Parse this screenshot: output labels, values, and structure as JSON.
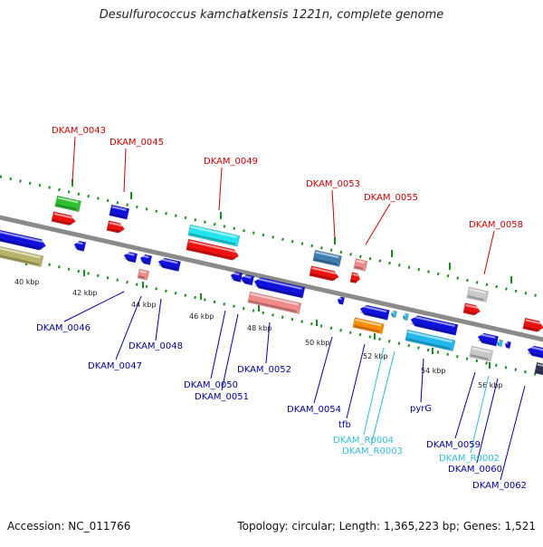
{
  "title": "Desulfurococcus kamchatkensis 1221n, complete genome",
  "footer": {
    "accession": "Accession: NC_011766",
    "info": "Topology: circular; Length: 1,365,223 bp; Genes: 1,521"
  },
  "ticks": [
    "40 kbp",
    "42 kbp",
    "44 kbp",
    "46 kbp",
    "48 kbp",
    "50 kbp",
    "52 kbp",
    "54 kbp",
    "56 kbp"
  ],
  "labels": {
    "top": [
      "DKAM_0043",
      "DKAM_0045",
      "DKAM_0049",
      "DKAM_0053",
      "DKAM_0055",
      "DKAM_0058"
    ],
    "bottom": [
      "DKAM_0046",
      "DKAM_0047",
      "DKAM_0048",
      "DKAM_0050",
      "DKAM_0051",
      "DKAM_0052",
      "DKAM_0054",
      "tfb",
      "DKAM_R0004",
      "DKAM_R0003",
      "pyrG",
      "DKAM_0059",
      "DKAM_R0002",
      "DKAM_0060",
      "DKAM_0062"
    ]
  },
  "colors": {
    "top_label": "#cc0000",
    "bottom_label": "#000099",
    "rna_label": "#33bbdd",
    "backbone": "#888888",
    "tick_mark": "#1a8a1a"
  }
}
